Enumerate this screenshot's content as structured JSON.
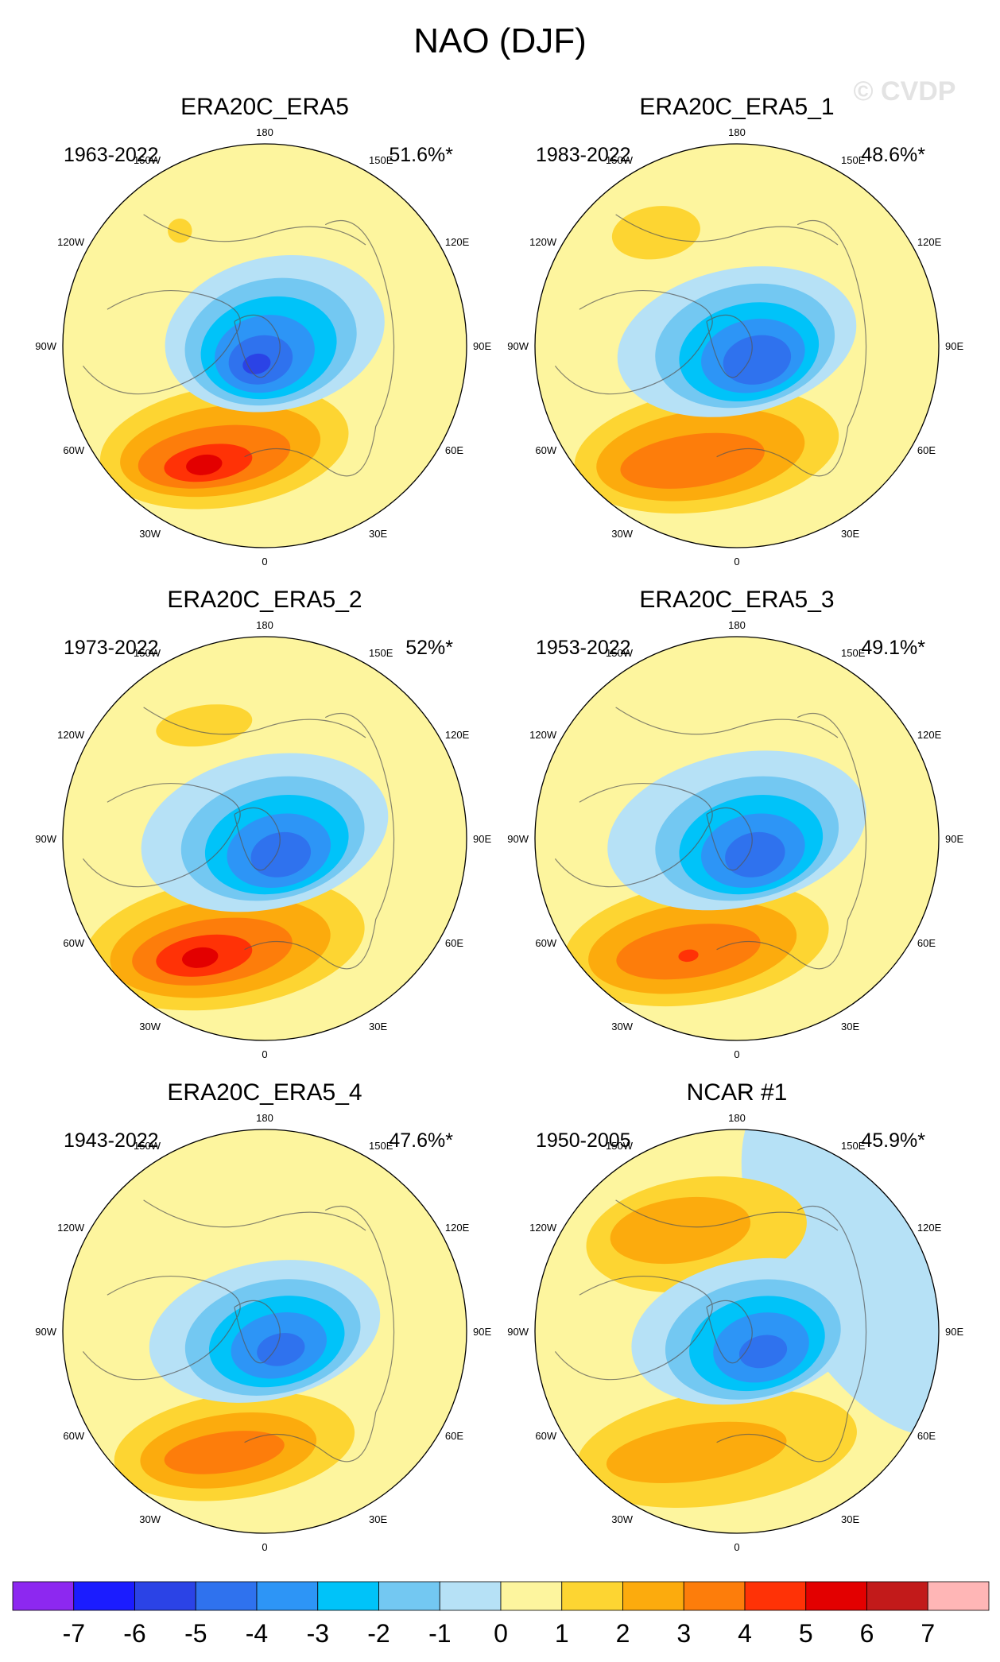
{
  "title": "NAO (DJF)",
  "watermark": "© CVDP",
  "chart_data": [
    {
      "type": "heatmap",
      "name": "ERA20C_ERA5",
      "period": "1963-2022",
      "pct": "51.6%*",
      "neg": [
        {
          "lev": -1,
          "dx": 0.05,
          "dy": -0.06,
          "rx": 0.55,
          "ry": 0.38
        },
        {
          "lev": -2,
          "dx": 0.03,
          "dy": -0.02,
          "rx": 0.43,
          "ry": 0.31
        },
        {
          "lev": -3,
          "dx": 0.02,
          "dy": 0.01,
          "rx": 0.34,
          "ry": 0.25
        },
        {
          "lev": -4,
          "dx": 0.0,
          "dy": 0.04,
          "rx": 0.25,
          "ry": 0.19
        },
        {
          "lev": -5,
          "dx": -0.02,
          "dy": 0.07,
          "rx": 0.16,
          "ry": 0.12
        },
        {
          "lev": -6,
          "dx": -0.04,
          "dy": 0.09,
          "rx": 0.07,
          "ry": 0.05
        }
      ],
      "pos": [
        {
          "lev": 1,
          "dx": -0.2,
          "dy": 0.5,
          "rx": 0.62,
          "ry": 0.3
        },
        {
          "lev": 2,
          "dx": -0.22,
          "dy": 0.52,
          "rx": 0.5,
          "ry": 0.22
        },
        {
          "lev": 3,
          "dx": -0.25,
          "dy": 0.55,
          "rx": 0.38,
          "ry": 0.15
        },
        {
          "lev": 4,
          "dx": -0.28,
          "dy": 0.58,
          "rx": 0.22,
          "ry": 0.09
        },
        {
          "lev": 5,
          "dx": -0.3,
          "dy": 0.59,
          "rx": 0.09,
          "ry": 0.05
        }
      ],
      "pac": [
        {
          "lev": 1,
          "dx": -0.42,
          "dy": -0.57,
          "rx": 0.06,
          "ry": 0.06
        }
      ]
    },
    {
      "type": "heatmap",
      "name": "ERA20C_ERA5_1",
      "period": "1983-2022",
      "pct": "48.6%*",
      "neg": [
        {
          "lev": -1,
          "dx": 0.0,
          "dy": -0.02,
          "rx": 0.6,
          "ry": 0.36
        },
        {
          "lev": -2,
          "dx": 0.04,
          "dy": 0.0,
          "rx": 0.45,
          "ry": 0.3
        },
        {
          "lev": -3,
          "dx": 0.06,
          "dy": 0.03,
          "rx": 0.35,
          "ry": 0.24
        },
        {
          "lev": -4,
          "dx": 0.08,
          "dy": 0.05,
          "rx": 0.26,
          "ry": 0.18
        },
        {
          "lev": -5,
          "dx": 0.1,
          "dy": 0.07,
          "rx": 0.17,
          "ry": 0.12
        }
      ],
      "pos": [
        {
          "lev": 1,
          "dx": -0.15,
          "dy": 0.52,
          "rx": 0.66,
          "ry": 0.3
        },
        {
          "lev": 2,
          "dx": -0.18,
          "dy": 0.54,
          "rx": 0.52,
          "ry": 0.22
        },
        {
          "lev": 3,
          "dx": -0.22,
          "dy": 0.57,
          "rx": 0.36,
          "ry": 0.13
        }
      ],
      "pac": [
        {
          "lev": 1,
          "dx": -0.4,
          "dy": -0.56,
          "rx": 0.22,
          "ry": 0.13
        }
      ]
    },
    {
      "type": "heatmap",
      "name": "ERA20C_ERA5_2",
      "period": "1973-2022",
      "pct": "52%*",
      "neg": [
        {
          "lev": -1,
          "dx": 0.0,
          "dy": -0.03,
          "rx": 0.62,
          "ry": 0.38
        },
        {
          "lev": -2,
          "dx": 0.04,
          "dy": 0.0,
          "rx": 0.46,
          "ry": 0.3
        },
        {
          "lev": -3,
          "dx": 0.06,
          "dy": 0.03,
          "rx": 0.36,
          "ry": 0.24
        },
        {
          "lev": -4,
          "dx": 0.07,
          "dy": 0.06,
          "rx": 0.26,
          "ry": 0.18
        },
        {
          "lev": -5,
          "dx": 0.08,
          "dy": 0.08,
          "rx": 0.15,
          "ry": 0.11
        }
      ],
      "pos": [
        {
          "lev": 1,
          "dx": -0.2,
          "dy": 0.52,
          "rx": 0.7,
          "ry": 0.32
        },
        {
          "lev": 2,
          "dx": -0.22,
          "dy": 0.54,
          "rx": 0.55,
          "ry": 0.24
        },
        {
          "lev": 3,
          "dx": -0.26,
          "dy": 0.56,
          "rx": 0.4,
          "ry": 0.16
        },
        {
          "lev": 4,
          "dx": -0.3,
          "dy": 0.58,
          "rx": 0.24,
          "ry": 0.1
        },
        {
          "lev": 5,
          "dx": -0.32,
          "dy": 0.59,
          "rx": 0.09,
          "ry": 0.05
        }
      ],
      "pac": [
        {
          "lev": 1,
          "dx": -0.3,
          "dy": -0.56,
          "rx": 0.24,
          "ry": 0.1
        }
      ]
    },
    {
      "type": "heatmap",
      "name": "ERA20C_ERA5_3",
      "period": "1953-2022",
      "pct": "49.1%*",
      "neg": [
        {
          "lev": -1,
          "dx": 0.0,
          "dy": -0.04,
          "rx": 0.65,
          "ry": 0.38
        },
        {
          "lev": -2,
          "dx": 0.05,
          "dy": 0.0,
          "rx": 0.46,
          "ry": 0.3
        },
        {
          "lev": -3,
          "dx": 0.07,
          "dy": 0.03,
          "rx": 0.36,
          "ry": 0.24
        },
        {
          "lev": -4,
          "dx": 0.08,
          "dy": 0.06,
          "rx": 0.26,
          "ry": 0.18
        },
        {
          "lev": -5,
          "dx": 0.09,
          "dy": 0.08,
          "rx": 0.15,
          "ry": 0.11
        }
      ],
      "pos": [
        {
          "lev": 1,
          "dx": -0.2,
          "dy": 0.52,
          "rx": 0.66,
          "ry": 0.3
        },
        {
          "lev": 2,
          "dx": -0.22,
          "dy": 0.54,
          "rx": 0.52,
          "ry": 0.22
        },
        {
          "lev": 3,
          "dx": -0.24,
          "dy": 0.56,
          "rx": 0.36,
          "ry": 0.13
        },
        {
          "lev": 4,
          "dx": -0.24,
          "dy": 0.58,
          "rx": 0.05,
          "ry": 0.03
        }
      ],
      "pac": []
    },
    {
      "type": "heatmap",
      "name": "ERA20C_ERA5_4",
      "period": "1943-2022",
      "pct": "47.6%*",
      "neg": [
        {
          "lev": -1,
          "dx": 0.0,
          "dy": 0.0,
          "rx": 0.58,
          "ry": 0.34
        },
        {
          "lev": -2,
          "dx": 0.04,
          "dy": 0.03,
          "rx": 0.44,
          "ry": 0.28
        },
        {
          "lev": -3,
          "dx": 0.06,
          "dy": 0.05,
          "rx": 0.34,
          "ry": 0.22
        },
        {
          "lev": -4,
          "dx": 0.07,
          "dy": 0.07,
          "rx": 0.24,
          "ry": 0.16
        },
        {
          "lev": -5,
          "dx": 0.08,
          "dy": 0.09,
          "rx": 0.12,
          "ry": 0.08
        }
      ],
      "pos": [
        {
          "lev": 1,
          "dx": -0.15,
          "dy": 0.57,
          "rx": 0.6,
          "ry": 0.26
        },
        {
          "lev": 2,
          "dx": -0.18,
          "dy": 0.59,
          "rx": 0.44,
          "ry": 0.18
        },
        {
          "lev": 3,
          "dx": -0.2,
          "dy": 0.6,
          "rx": 0.3,
          "ry": 0.1
        }
      ],
      "pac": []
    },
    {
      "type": "heatmap",
      "name": "NCAR #1",
      "period": "1950-2005",
      "pct": "45.9%*",
      "neg": [
        {
          "lev": -1,
          "dx": 0.05,
          "dy": 0.0,
          "rx": 0.58,
          "ry": 0.35
        },
        {
          "lev": -2,
          "dx": 0.08,
          "dy": 0.04,
          "rx": 0.44,
          "ry": 0.29
        },
        {
          "lev": -3,
          "dx": 0.1,
          "dy": 0.06,
          "rx": 0.34,
          "ry": 0.23
        },
        {
          "lev": -4,
          "dx": 0.12,
          "dy": 0.08,
          "rx": 0.24,
          "ry": 0.17
        },
        {
          "lev": -5,
          "dx": 0.13,
          "dy": 0.1,
          "rx": 0.12,
          "ry": 0.08
        }
      ],
      "pos": [
        {
          "lev": 1,
          "dx": -0.1,
          "dy": 0.58,
          "rx": 0.7,
          "ry": 0.28
        },
        {
          "lev": 2,
          "dx": -0.2,
          "dy": 0.6,
          "rx": 0.45,
          "ry": 0.14
        }
      ],
      "pac": [
        {
          "lev": 1,
          "dx": -0.2,
          "dy": -0.48,
          "rx": 0.55,
          "ry": 0.28
        },
        {
          "lev": 2,
          "dx": -0.28,
          "dy": -0.5,
          "rx": 0.35,
          "ry": 0.16
        }
      ]
    }
  ],
  "lon_labels": [
    "180",
    "150E",
    "120E",
    "90E",
    "60E",
    "30E",
    "0",
    "30W",
    "60W",
    "90W",
    "120W",
    "150W"
  ],
  "colorbar": {
    "colors": [
      "#8d28f0",
      "#1b1cff",
      "#2b43e6",
      "#2f72ee",
      "#2d95f6",
      "#00c3f9",
      "#73c8f2",
      "#b6e1f6",
      "#fdf59e",
      "#fdd532",
      "#fcab0d",
      "#fd7d0b",
      "#ff3206",
      "#e30000",
      "#c21a1a",
      "#ffb6b6"
    ],
    "labels": [
      "-7",
      "-6",
      "-5",
      "-4",
      "-3",
      "-2",
      "-1",
      "0",
      "1",
      "2",
      "3",
      "4",
      "5",
      "6",
      "7"
    ]
  }
}
